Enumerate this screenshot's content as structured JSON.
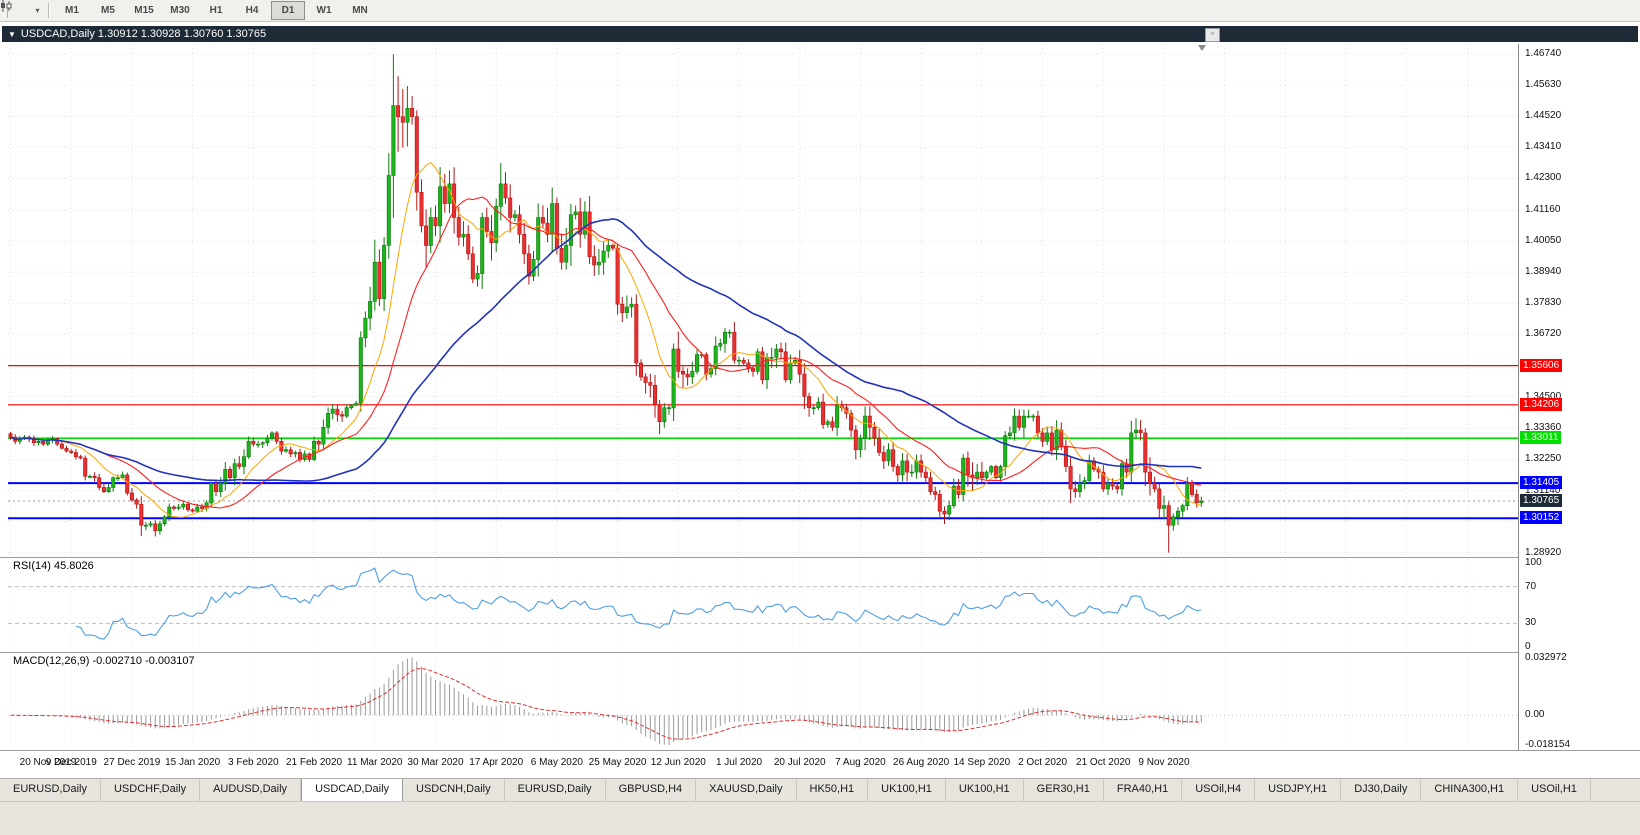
{
  "toolbar": {
    "timeframes": [
      "M1",
      "M5",
      "M15",
      "M30",
      "H1",
      "H4",
      "D1",
      "W1",
      "MN"
    ],
    "active_timeframe": "D1"
  },
  "chart_window": {
    "title": "USDCAD,Daily 1.30912 1.30928 1.30760 1.30765",
    "symbol": "USDCAD,Daily",
    "ohlc": {
      "open": "1.30912",
      "high": "1.30928",
      "low": "1.30760",
      "close": "1.30765"
    }
  },
  "indicators": {
    "rsi": {
      "label": "RSI(14) 45.8026",
      "levels": [
        "100",
        "70",
        "30",
        "0"
      ],
      "line_color": "#4C9FE8",
      "level_color": "#BCBCCE"
    },
    "macd": {
      "label": "MACD(12,26,9) -0.002710 -0.003107",
      "levels": [
        "0.032972",
        "0.00",
        "-0.018154"
      ],
      "histogram_color": "#9A9A9A",
      "signal_color": "#E03030"
    }
  },
  "chart_data": {
    "type": "candlestick",
    "symbol": "USDCAD",
    "timeframe": "Daily",
    "x_labels": [
      "20 Nov 2019",
      "9 Dec 2019",
      "27 Dec 2019",
      "15 Jan 2020",
      "3 Feb 2020",
      "21 Feb 2020",
      "11 Mar 2020",
      "30 Mar 2020",
      "17 Apr 2020",
      "6 May 2020",
      "25 May 2020",
      "12 Jun 2020",
      "1 Jul 2020",
      "20 Jul 2020",
      "7 Aug 2020",
      "26 Aug 2020",
      "14 Sep 2020",
      "2 Oct 2020",
      "21 Oct 2020",
      "9 Nov 2020"
    ],
    "x_label_step": 13,
    "y_ticks": [
      "1.46740",
      "1.45630",
      "1.44520",
      "1.43410",
      "1.42300",
      "1.41160",
      "1.40050",
      "1.38940",
      "1.37830",
      "1.36720",
      "1.34500",
      "1.33360",
      "1.32250",
      "1.31140",
      "1.30030",
      "1.28920"
    ],
    "y_range": [
      1.288,
      1.471
    ],
    "macd_range": [
      -0.018154,
      0.032972
    ],
    "closes": [
      1.3305,
      1.329,
      1.33,
      1.3305,
      1.33,
      1.3285,
      1.329,
      1.328,
      1.3295,
      1.33,
      1.328,
      1.3265,
      1.3255,
      1.325,
      1.3235,
      1.323,
      1.3165,
      1.3165,
      1.316,
      1.3125,
      1.311,
      1.3125,
      1.316,
      1.316,
      1.317,
      1.3105,
      1.308,
      1.3065,
      1.299,
      1.299,
      1.2995,
      1.297,
      1.2995,
      1.302,
      1.3055,
      1.305,
      1.3055,
      1.3065,
      1.3045,
      1.304,
      1.3055,
      1.305,
      1.307,
      1.314,
      1.311,
      1.314,
      1.319,
      1.316,
      1.321,
      1.32,
      1.3235,
      1.329,
      1.328,
      1.328,
      1.3285,
      1.33,
      1.332,
      1.329,
      1.3255,
      1.326,
      1.3245,
      1.325,
      1.3225,
      1.3245,
      1.3225,
      1.329,
      1.328,
      1.334,
      1.339,
      1.3405,
      1.3385,
      1.338,
      1.341,
      1.342,
      1.3425,
      1.366,
      1.373,
      1.379,
      1.393,
      1.38,
      1.399,
      1.424,
      1.449,
      1.445,
      1.443,
      1.448,
      1.445,
      1.418,
      1.406,
      1.399,
      1.409,
      1.406,
      1.42,
      1.414,
      1.421,
      1.409,
      1.402,
      1.403,
      1.396,
      1.387,
      1.389,
      1.409,
      1.404,
      1.4,
      1.413,
      1.421,
      1.416,
      1.409,
      1.41,
      1.403,
      1.396,
      1.388,
      1.394,
      1.409,
      1.407,
      1.403,
      1.414,
      1.398,
      1.393,
      1.399,
      1.41,
      1.411,
      1.403,
      1.411,
      1.395,
      1.392,
      1.393,
      1.397,
      1.399,
      1.398,
      1.378,
      1.375,
      1.377,
      1.378,
      1.357,
      1.352,
      1.35,
      1.349,
      1.342,
      1.336,
      1.341,
      1.341,
      1.362,
      1.354,
      1.353,
      1.352,
      1.354,
      1.36,
      1.36,
      1.353,
      1.355,
      1.363,
      1.364,
      1.368,
      1.368,
      1.358,
      1.358,
      1.357,
      1.355,
      1.354,
      1.361,
      1.351,
      1.359,
      1.359,
      1.362,
      1.361,
      1.351,
      1.357,
      1.358,
      1.353,
      1.345,
      1.341,
      1.341,
      1.343,
      1.335,
      1.336,
      1.334,
      1.342,
      1.341,
      1.339,
      1.333,
      1.326,
      1.33,
      1.338,
      1.334,
      1.33,
      1.325,
      1.322,
      1.326,
      1.32,
      1.317,
      1.322,
      1.318,
      1.318,
      1.322,
      1.318,
      1.316,
      1.311,
      1.31,
      1.304,
      1.303,
      1.306,
      1.313,
      1.31,
      1.323,
      1.317,
      1.316,
      1.318,
      1.316,
      1.318,
      1.32,
      1.316,
      1.32,
      1.331,
      1.332,
      1.338,
      1.334,
      1.338,
      1.338,
      1.338,
      1.332,
      1.329,
      1.332,
      1.326,
      1.333,
      1.327,
      1.32,
      1.312,
      1.311,
      1.314,
      1.315,
      1.322,
      1.319,
      1.318,
      1.312,
      1.314,
      1.313,
      1.312,
      1.321,
      1.318,
      1.332,
      1.333,
      1.332,
      1.318,
      1.314,
      1.312,
      1.305,
      1.306,
      1.299,
      1.302,
      1.304,
      1.306,
      1.314,
      1.31,
      1.307,
      1.30765
    ],
    "high_overrides": {
      "82": 1.4674,
      "85": 1.456
    },
    "low_overrides": {
      "28": 1.2952,
      "31": 1.295,
      "139": 1.3315,
      "200": 1.2994,
      "248": 1.2892
    },
    "levels": [
      {
        "price": 1.35606,
        "label": "1.35606",
        "color": "#FF0000",
        "width": 1.2
      },
      {
        "price": 1.34206,
        "label": "1.34206",
        "color": "#FF0000",
        "width": 1.2
      },
      {
        "price": 1.33011,
        "label": "1.33011",
        "color": "#00E100",
        "width": 1.6
      },
      {
        "price": 1.31405,
        "label": "1.31405",
        "color": "#0000FF",
        "width": 2
      },
      {
        "price": 1.30152,
        "label": "1.30152",
        "color": "#0000FF",
        "width": 2
      }
    ],
    "current_price": {
      "value": 1.30765,
      "label": "1.30765",
      "color": "#1E2A36"
    },
    "moving_averages": [
      {
        "name": "ma-fast",
        "period": 10,
        "color": "#FFA500",
        "width": 1
      },
      {
        "name": "ma-medium",
        "period": 21,
        "color": "#FF2020",
        "width": 1.1
      },
      {
        "name": "ma-slow",
        "period": 50,
        "color": "#2233BB",
        "width": 1.6
      }
    ],
    "up_color": "#1CB31C",
    "up_border": "#0E7A0E",
    "down_color": "#E93030",
    "down_border": "#B31414"
  },
  "bottom_tabs": {
    "tabs": [
      "EURUSD,Daily",
      "USDCHF,Daily",
      "AUDUSD,Daily",
      "USDCAD,Daily",
      "USDCNH,Daily",
      "EURUSD,Daily",
      "GBPUSD,H4",
      "XAUUSD,Daily",
      "HK50,H1",
      "UK100,H1",
      "UK100,H1",
      "GER30,H1",
      "FRA40,H1",
      "USOil,H4",
      "USDJPY,H1",
      "DJ30,Daily",
      "CHINA300,H1",
      "USOil,H1"
    ],
    "active_index": 3
  }
}
